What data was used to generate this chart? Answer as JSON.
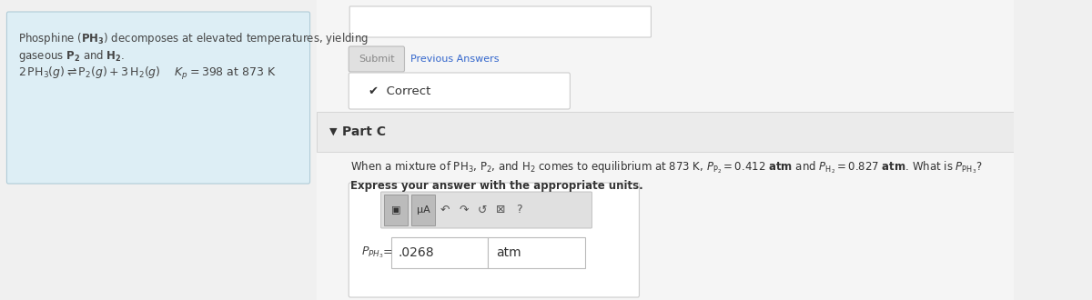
{
  "bg_color": "#f0f0f0",
  "left_box_color": "#ddeef5",
  "right_bg": "#f5f5f5",
  "submit_label": "Submit",
  "prev_answers_label": "Previous Answers",
  "correct_label": "✔  Correct",
  "partc_label": "Part C",
  "express_text": "Express your answer with the appropriate units.",
  "answer_value": ".0268",
  "answer_unit": "atm",
  "toolbar_icons_left": [
    "▣",
    "µA"
  ],
  "toolbar_icons_right": [
    "↶",
    "↷",
    "↺",
    "⊠",
    "?"
  ]
}
